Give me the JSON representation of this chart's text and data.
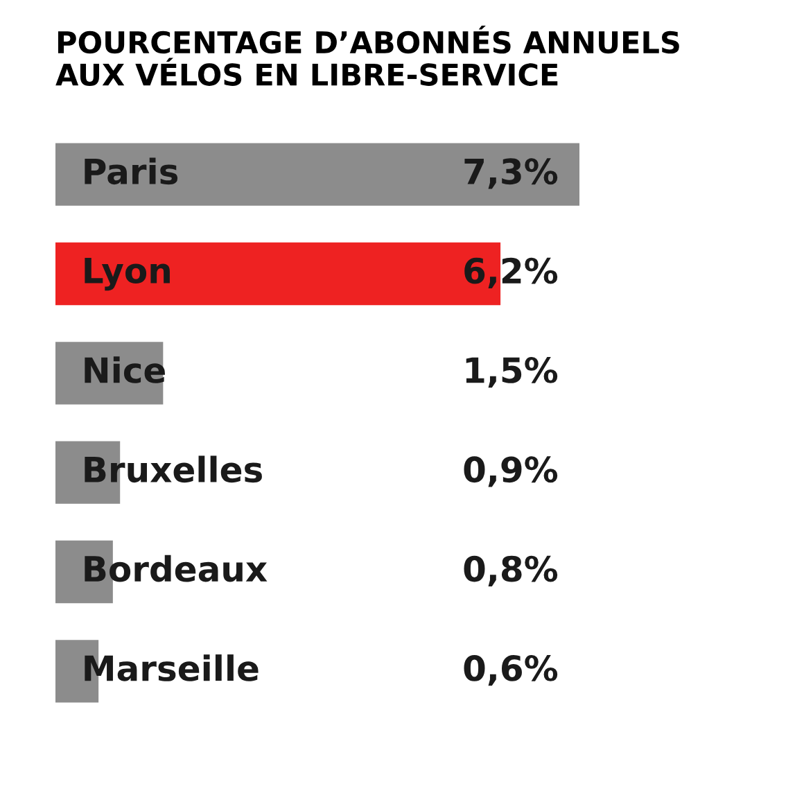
{
  "chart_data": {
    "type": "bar",
    "orientation": "horizontal",
    "title": "POURCENTAGE D’ABONNÉS ANNUELS\nAUX VÉLOS EN LIBRE-SERVICE",
    "categories": [
      "Paris",
      "Lyon",
      "Nice",
      "Bruxelles",
      "Bordeaux",
      "Marseille"
    ],
    "values": [
      7.3,
      6.2,
      1.5,
      0.9,
      0.8,
      0.6
    ],
    "colors": [
      "#8c8c8c",
      "#ee2222",
      "#8c8c8c",
      "#8c8c8c",
      "#8c8c8c",
      "#8c8c8c"
    ],
    "value_labels": [
      "7,3%",
      "6,2%",
      "1,5%",
      "0,9%",
      "0,8%",
      "0,6%"
    ]
  }
}
